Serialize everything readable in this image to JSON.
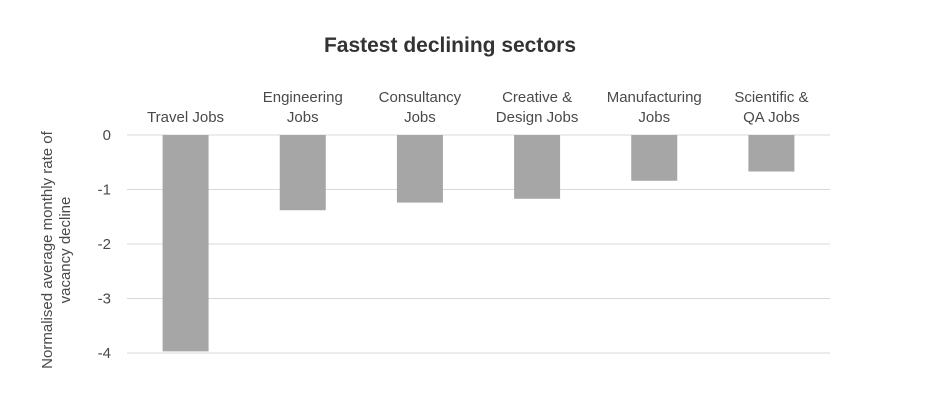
{
  "chart_data": {
    "type": "bar",
    "title": "Fastest declining sectors",
    "ylabel_lines": [
      "Normalised average monthly rate of",
      "vacancy decline"
    ],
    "xlabel": "",
    "categories": [
      [
        "Travel Jobs"
      ],
      [
        "Engineering",
        "Jobs"
      ],
      [
        "Consultancy",
        "Jobs"
      ],
      [
        "Creative &",
        "Design Jobs"
      ],
      [
        "Manufacturing",
        "Jobs"
      ],
      [
        "Scientific &",
        "QA Jobs"
      ]
    ],
    "values": [
      -3.97,
      -1.38,
      -1.24,
      -1.17,
      -0.84,
      -0.67
    ],
    "ylim": [
      -4,
      0
    ],
    "yticks": [
      0,
      -1,
      -2,
      -3,
      -4
    ],
    "grid": true,
    "legend": "none",
    "x_axis_position": "top",
    "colors": {
      "bar": "#a6a6a6",
      "grid": "#d9d9d9",
      "text": "#4a4a4a",
      "title": "#333333"
    }
  }
}
